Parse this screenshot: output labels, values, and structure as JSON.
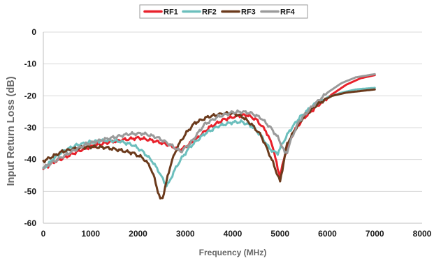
{
  "chart_data": {
    "type": "line",
    "title": "",
    "xlabel": "Frequency (MHz)",
    "ylabel": "Input Return Loss (dB)",
    "xlim": [
      0,
      8000
    ],
    "ylim": [
      -60,
      0
    ],
    "xticks": [
      0,
      1000,
      2000,
      3000,
      4000,
      5000,
      6000,
      7000,
      8000
    ],
    "yticks": [
      0,
      -10,
      -20,
      -30,
      -40,
      -50,
      -60
    ],
    "grid": true,
    "legend_position": "top-center",
    "series": [
      {
        "name": "RF1",
        "color": "#e8212b",
        "x": [
          0,
          200,
          500,
          800,
          1100,
          1400,
          1700,
          2000,
          2300,
          2600,
          2900,
          3200,
          3500,
          3800,
          4100,
          4300,
          4500,
          4700,
          4850,
          4950,
          5000,
          5050,
          5150,
          5300,
          5500,
          5800,
          6100,
          6400,
          6700,
          7000
        ],
        "y": [
          -43,
          -41,
          -39,
          -37,
          -35.5,
          -34.5,
          -33.8,
          -33.2,
          -34,
          -35.2,
          -37,
          -34,
          -30,
          -27.5,
          -26.3,
          -26,
          -27.5,
          -31,
          -36,
          -43,
          -45,
          -42,
          -36,
          -31,
          -27,
          -23,
          -19.5,
          -16.5,
          -14.5,
          -13.5
        ]
      },
      {
        "name": "RF2",
        "color": "#6cbfbd",
        "x": [
          0,
          200,
          400,
          700,
          1000,
          1300,
          1600,
          1900,
          2100,
          2300,
          2450,
          2550,
          2600,
          2650,
          2750,
          2900,
          3100,
          3400,
          3700,
          4000,
          4200,
          4400,
          4600,
          4750,
          4850,
          4950,
          5050,
          5200,
          5400,
          5700,
          6000,
          6300,
          6600,
          7000
        ],
        "y": [
          -43,
          -40,
          -37.5,
          -35.5,
          -34.5,
          -34,
          -34.2,
          -35.5,
          -37.5,
          -40.5,
          -44,
          -47,
          -48,
          -47.5,
          -44,
          -40,
          -36,
          -32,
          -29.5,
          -28.3,
          -28.2,
          -29.5,
          -32.5,
          -36,
          -37.5,
          -38,
          -35,
          -31,
          -27,
          -23,
          -20.5,
          -19,
          -18,
          -17.5
        ]
      },
      {
        "name": "RF3",
        "color": "#6b3a1c",
        "x": [
          0,
          200,
          400,
          700,
          1000,
          1300,
          1600,
          1900,
          2100,
          2250,
          2350,
          2420,
          2470,
          2520,
          2600,
          2700,
          2850,
          3000,
          3200,
          3500,
          3800,
          4000,
          4200,
          4400,
          4600,
          4750,
          4850,
          4950,
          5000,
          5050,
          5150,
          5300,
          5500,
          5800,
          6100,
          6400,
          6700,
          7000
        ],
        "y": [
          -40.5,
          -39,
          -37.5,
          -36.5,
          -36,
          -36.2,
          -37,
          -38,
          -39.5,
          -42,
          -46,
          -50,
          -52.5,
          -52,
          -47,
          -41,
          -35.5,
          -32,
          -28.5,
          -26.5,
          -25.6,
          -25.5,
          -26.5,
          -29,
          -32.5,
          -37.5,
          -41,
          -45,
          -47,
          -43,
          -35,
          -31,
          -26.5,
          -22.5,
          -20,
          -19,
          -18.5,
          -18
        ]
      },
      {
        "name": "RF4",
        "color": "#9a9a9a",
        "x": [
          0,
          300,
          600,
          900,
          1200,
          1500,
          1800,
          2100,
          2400,
          2700,
          2900,
          3100,
          3400,
          3700,
          4000,
          4200,
          4400,
          4600,
          4800,
          4950,
          5050,
          5100,
          5150,
          5250,
          5400,
          5700,
          6000,
          6300,
          6600,
          7000
        ],
        "y": [
          -42.5,
          -40,
          -37.5,
          -35.2,
          -34,
          -33,
          -32,
          -31.8,
          -33,
          -35.5,
          -37.5,
          -35,
          -29,
          -26.5,
          -25.2,
          -25,
          -25.5,
          -27,
          -30,
          -33,
          -36,
          -38,
          -37.5,
          -33,
          -28,
          -23,
          -19,
          -16,
          -14.2,
          -13.2
        ]
      }
    ]
  }
}
